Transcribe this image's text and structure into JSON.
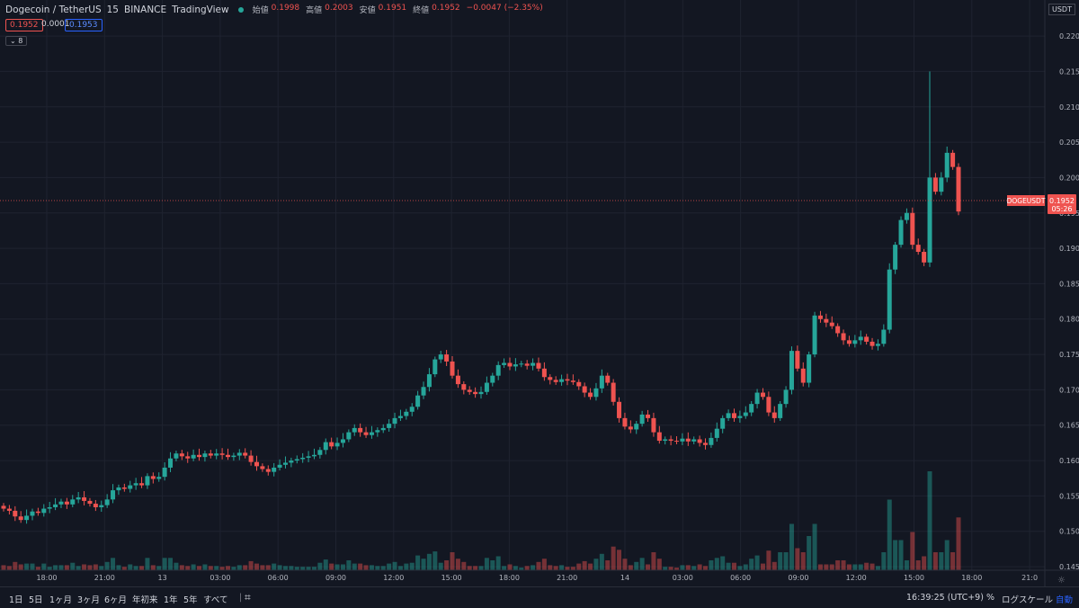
{
  "header": {
    "symbol": "Dogecoin / TetherUS",
    "interval": "15",
    "exchange": "BINANCE",
    "source": "TradingView",
    "open_label": "始値",
    "open_value": "0.1998",
    "high_label": "高値",
    "high_value": "0.2003",
    "low_label": "安値",
    "low_value": "0.1951",
    "close_label": "終値",
    "close_value": "0.1952",
    "change_value": "−0.0047 (−2.35%)",
    "sell_price": "0.1952",
    "spread": "0.0001",
    "buy_price": "0.1953",
    "indicator_count": "8"
  },
  "axis_currency": "USDT",
  "last_price_label": {
    "symbol": "DOGEUSDT",
    "price": "0.1952",
    "countdown": "05:26"
  },
  "colors": {
    "up": "#26a69a",
    "down": "#ef5350",
    "bg": "#131722",
    "grid": "#1f2330"
  },
  "bottom": {
    "ranges": [
      "1日",
      "5日",
      "1ヶ月",
      "3ヶ月",
      "6ヶ月",
      "年初来",
      "1年",
      "5年",
      "すべて"
    ],
    "time_display": "16:39:25 (UTC+9)",
    "percent_label": "%",
    "log_scale_label": "ログスケール",
    "auto_label": "自動",
    "replay_icon": "calendar-range-icon",
    "settings_icon": "gear-icon"
  },
  "chart_data": {
    "type": "candlestick",
    "interval_minutes": 15,
    "x_tick_labels": [
      "18:00",
      "21:00",
      "13",
      "03:00",
      "06:00",
      "09:00",
      "12:00",
      "15:00",
      "18:00",
      "21:00",
      "14",
      "03:00",
      "06:00",
      "09:00",
      "12:00",
      "15:00",
      "18:00",
      "21:0"
    ],
    "y_tick_labels": [
      "0.2200",
      "0.2150",
      "0.2100",
      "0.2050",
      "0.2000",
      "0.1950",
      "0.1900",
      "0.1850",
      "0.1800",
      "0.1750",
      "0.1700",
      "0.1650",
      "0.1600",
      "0.1550",
      "0.1500",
      "0.1450"
    ],
    "ylim": [
      0.1445,
      0.2223
    ],
    "closes": [
      0.1532,
      0.1529,
      0.1521,
      0.1516,
      0.1522,
      0.1528,
      0.1526,
      0.1532,
      0.1534,
      0.1538,
      0.1542,
      0.1538,
      0.1545,
      0.1548,
      0.1543,
      0.1539,
      0.1534,
      0.1537,
      0.1545,
      0.1558,
      0.1562,
      0.156,
      0.1565,
      0.1568,
      0.1565,
      0.1578,
      0.1574,
      0.1577,
      0.159,
      0.1603,
      0.161,
      0.1606,
      0.1603,
      0.1608,
      0.1605,
      0.161,
      0.1607,
      0.161,
      0.1608,
      0.1605,
      0.1607,
      0.1611,
      0.1607,
      0.1598,
      0.1592,
      0.1588,
      0.1584,
      0.159,
      0.1594,
      0.1597,
      0.16,
      0.1602,
      0.1604,
      0.1606,
      0.1608,
      0.1615,
      0.1626,
      0.162,
      0.1625,
      0.163,
      0.164,
      0.1646,
      0.164,
      0.1636,
      0.164,
      0.1643,
      0.1646,
      0.1652,
      0.166,
      0.1663,
      0.1669,
      0.1676,
      0.1692,
      0.1704,
      0.1722,
      0.1743,
      0.175,
      0.174,
      0.172,
      0.1708,
      0.17,
      0.1697,
      0.1694,
      0.1697,
      0.171,
      0.172,
      0.1735,
      0.1738,
      0.1733,
      0.1736,
      0.1737,
      0.1734,
      0.1738,
      0.173,
      0.1718,
      0.1714,
      0.1711,
      0.1715,
      0.1713,
      0.1711,
      0.1705,
      0.1696,
      0.169,
      0.1702,
      0.172,
      0.171,
      0.1683,
      0.166,
      0.1648,
      0.1644,
      0.1652,
      0.1665,
      0.166,
      0.164,
      0.1628,
      0.163,
      0.1628,
      0.1627,
      0.1631,
      0.1627,
      0.163,
      0.1625,
      0.1622,
      0.1632,
      0.1645,
      0.166,
      0.1667,
      0.166,
      0.1663,
      0.1668,
      0.168,
      0.1696,
      0.169,
      0.1668,
      0.166,
      0.168,
      0.17,
      0.1755,
      0.173,
      0.171,
      0.175,
      0.1805,
      0.18,
      0.1795,
      0.179,
      0.178,
      0.177,
      0.1765,
      0.177,
      0.1775,
      0.1768,
      0.1762,
      0.1765,
      0.1785,
      0.187,
      0.1905,
      0.194,
      0.195,
      0.1905,
      0.1895,
      0.188,
      0.2,
      0.198,
      0.2,
      0.2035,
      0.2015,
      0.1952
    ],
    "volume_relative": "lower band, tallest bars near the end of the series"
  }
}
